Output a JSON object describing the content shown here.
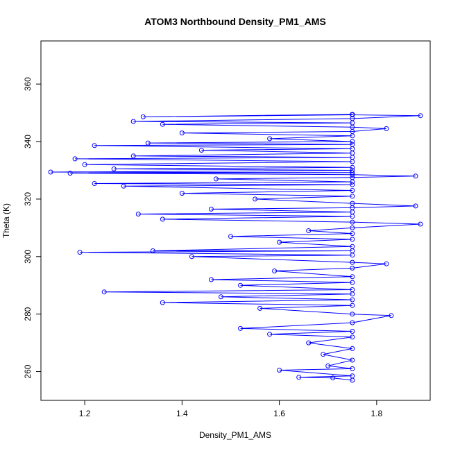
{
  "chart_data": {
    "type": "scatter",
    "title": "ATOM3 Northbound Density_PM1_AMS",
    "xlabel": "Density_PM1_AMS",
    "ylabel": "Theta (K)",
    "xlim": [
      1.11,
      1.91
    ],
    "ylim": [
      250,
      375
    ],
    "xticks": [
      1.2,
      1.4,
      1.6,
      1.8
    ],
    "yticks": [
      260,
      280,
      300,
      320,
      340,
      360
    ],
    "xtick_labels": [
      "1.2",
      "1.4",
      "1.6",
      "1.8"
    ],
    "ytick_labels": [
      "260",
      "280",
      "300",
      "320",
      "340",
      "360"
    ],
    "grid": false,
    "series_color": "#0000ff",
    "marker": "open-circle",
    "connected_line": true,
    "series": [
      {
        "values": [
          {
            "x": 1.75,
            "y": 257
          },
          {
            "x": 1.71,
            "y": 257.8
          },
          {
            "x": 1.64,
            "y": 258
          },
          {
            "x": 1.75,
            "y": 258.5
          },
          {
            "x": 1.6,
            "y": 260.5
          },
          {
            "x": 1.75,
            "y": 261
          },
          {
            "x": 1.7,
            "y": 262
          },
          {
            "x": 1.75,
            "y": 264
          },
          {
            "x": 1.69,
            "y": 266
          },
          {
            "x": 1.75,
            "y": 268
          },
          {
            "x": 1.66,
            "y": 270
          },
          {
            "x": 1.75,
            "y": 272
          },
          {
            "x": 1.58,
            "y": 273
          },
          {
            "x": 1.75,
            "y": 274
          },
          {
            "x": 1.52,
            "y": 275
          },
          {
            "x": 1.75,
            "y": 277
          },
          {
            "x": 1.83,
            "y": 279.5
          },
          {
            "x": 1.75,
            "y": 280
          },
          {
            "x": 1.56,
            "y": 282
          },
          {
            "x": 1.75,
            "y": 283
          },
          {
            "x": 1.36,
            "y": 284
          },
          {
            "x": 1.75,
            "y": 285
          },
          {
            "x": 1.48,
            "y": 286
          },
          {
            "x": 1.75,
            "y": 287
          },
          {
            "x": 1.24,
            "y": 287.7
          },
          {
            "x": 1.75,
            "y": 288.5
          },
          {
            "x": 1.52,
            "y": 290
          },
          {
            "x": 1.75,
            "y": 291
          },
          {
            "x": 1.46,
            "y": 292
          },
          {
            "x": 1.75,
            "y": 293
          },
          {
            "x": 1.59,
            "y": 295
          },
          {
            "x": 1.75,
            "y": 296
          },
          {
            "x": 1.82,
            "y": 297.5
          },
          {
            "x": 1.75,
            "y": 298
          },
          {
            "x": 1.42,
            "y": 300
          },
          {
            "x": 1.75,
            "y": 300.5
          },
          {
            "x": 1.19,
            "y": 301.5
          },
          {
            "x": 1.75,
            "y": 302
          },
          {
            "x": 1.34,
            "y": 302
          },
          {
            "x": 1.75,
            "y": 303.5
          },
          {
            "x": 1.6,
            "y": 305
          },
          {
            "x": 1.75,
            "y": 306
          },
          {
            "x": 1.5,
            "y": 307
          },
          {
            "x": 1.75,
            "y": 308
          },
          {
            "x": 1.66,
            "y": 309
          },
          {
            "x": 1.75,
            "y": 310
          },
          {
            "x": 1.89,
            "y": 311.3
          },
          {
            "x": 1.75,
            "y": 312
          },
          {
            "x": 1.36,
            "y": 313
          },
          {
            "x": 1.75,
            "y": 314
          },
          {
            "x": 1.31,
            "y": 314.8
          },
          {
            "x": 1.75,
            "y": 315.5
          },
          {
            "x": 1.46,
            "y": 316.5
          },
          {
            "x": 1.75,
            "y": 317
          },
          {
            "x": 1.88,
            "y": 317.6
          },
          {
            "x": 1.75,
            "y": 318.5
          },
          {
            "x": 1.55,
            "y": 320
          },
          {
            "x": 1.75,
            "y": 321
          },
          {
            "x": 1.4,
            "y": 322
          },
          {
            "x": 1.75,
            "y": 323
          },
          {
            "x": 1.28,
            "y": 324.5
          },
          {
            "x": 1.75,
            "y": 325
          },
          {
            "x": 1.22,
            "y": 325.4
          },
          {
            "x": 1.75,
            "y": 326
          },
          {
            "x": 1.47,
            "y": 327
          },
          {
            "x": 1.75,
            "y": 327.5
          },
          {
            "x": 1.88,
            "y": 328
          },
          {
            "x": 1.75,
            "y": 328.5
          },
          {
            "x": 1.17,
            "y": 329
          },
          {
            "x": 1.75,
            "y": 329.2
          },
          {
            "x": 1.13,
            "y": 329.4
          },
          {
            "x": 1.75,
            "y": 330
          },
          {
            "x": 1.26,
            "y": 330.5
          },
          {
            "x": 1.75,
            "y": 331
          },
          {
            "x": 1.2,
            "y": 332
          },
          {
            "x": 1.75,
            "y": 333
          },
          {
            "x": 1.18,
            "y": 334
          },
          {
            "x": 1.75,
            "y": 334.5
          },
          {
            "x": 1.3,
            "y": 335
          },
          {
            "x": 1.75,
            "y": 336
          },
          {
            "x": 1.44,
            "y": 337
          },
          {
            "x": 1.75,
            "y": 337.5
          },
          {
            "x": 1.22,
            "y": 338.6
          },
          {
            "x": 1.75,
            "y": 339
          },
          {
            "x": 1.33,
            "y": 339.5
          },
          {
            "x": 1.75,
            "y": 340
          },
          {
            "x": 1.58,
            "y": 341
          },
          {
            "x": 1.75,
            "y": 342
          },
          {
            "x": 1.4,
            "y": 343
          },
          {
            "x": 1.75,
            "y": 343.5
          },
          {
            "x": 1.82,
            "y": 344.5
          },
          {
            "x": 1.75,
            "y": 345
          },
          {
            "x": 1.36,
            "y": 346
          },
          {
            "x": 1.75,
            "y": 346.5
          },
          {
            "x": 1.3,
            "y": 347
          },
          {
            "x": 1.75,
            "y": 348
          },
          {
            "x": 1.89,
            "y": 349
          },
          {
            "x": 1.75,
            "y": 349.3
          },
          {
            "x": 1.32,
            "y": 348.6
          },
          {
            "x": 1.75,
            "y": 349.5
          }
        ]
      }
    ]
  }
}
